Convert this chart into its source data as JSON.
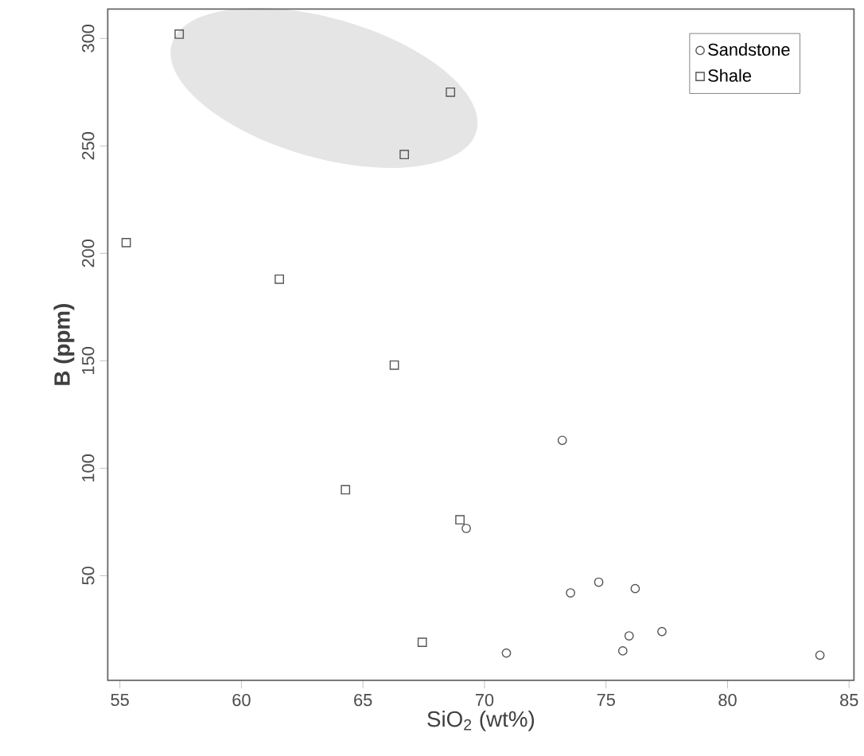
{
  "chart_data": {
    "type": "scatter",
    "xlabel": "SiO$_{2}$ (wt%)",
    "ylabel": "B (ppm)",
    "xlim": [
      54.5,
      85.2
    ],
    "ylim": [
      1.3,
      313.7
    ],
    "xticks": [
      55,
      60,
      65,
      70,
      75,
      80,
      85
    ],
    "yticks": [
      50,
      100,
      150,
      200,
      250,
      300
    ],
    "legend": "top right",
    "grid": false,
    "series": [
      {
        "name": "Sandstone",
        "color": "#555555",
        "marker": "circle",
        "x": [
          69.25,
          73.2,
          73.54,
          74.7,
          76.2,
          75.95,
          75.69,
          77.3,
          70.9,
          83.8
        ],
        "values": [
          72,
          113,
          42,
          47,
          44,
          22,
          15,
          24,
          14,
          13
        ]
      },
      {
        "name": "Shale",
        "color": "#555555",
        "marker": "square",
        "x": [
          57.44,
          68.6,
          66.7,
          55.26,
          61.56,
          66.29,
          64.28,
          68.99,
          67.44
        ],
        "values": [
          302,
          275,
          246,
          205,
          188,
          148,
          90,
          76,
          19
        ]
      }
    ]
  }
}
